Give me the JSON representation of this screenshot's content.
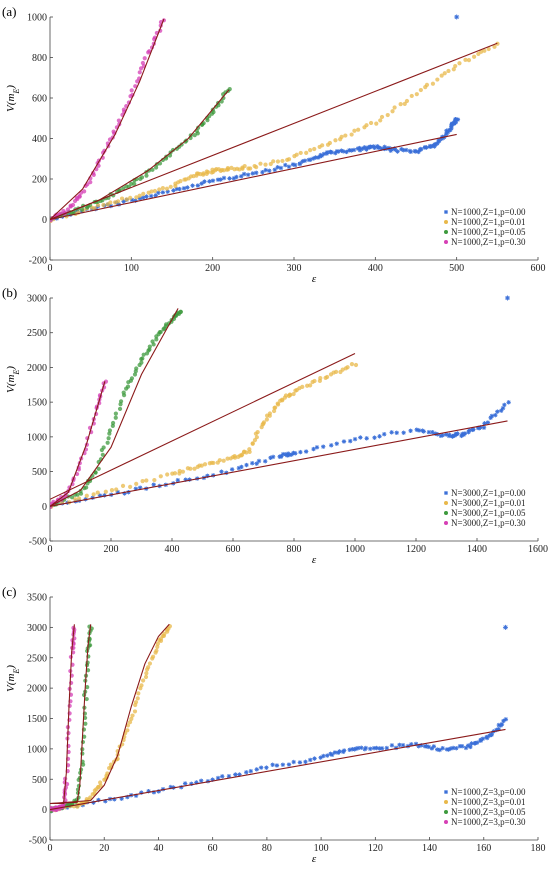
{
  "chart_data": [
    {
      "panel": "(a)",
      "type": "scatter",
      "xlabel": "ε",
      "ylabel": "V(m_E)",
      "xlim": [
        0,
        600
      ],
      "ylim": [
        -200,
        1000
      ],
      "xticks": [
        0,
        100,
        200,
        300,
        400,
        500,
        600
      ],
      "yticks": [
        -200,
        0,
        200,
        400,
        600,
        800,
        1000
      ],
      "legend_position": "bottom-right",
      "series": [
        {
          "name": "N=1000,Z=1,p=0.00",
          "color": "#3a6fd8",
          "marker": "asterisk",
          "points": [
            [
              0,
              0
            ],
            [
              50,
              50
            ],
            [
              100,
              95
            ],
            [
              150,
              140
            ],
            [
              200,
              190
            ],
            [
              250,
              230
            ],
            [
              300,
              270
            ],
            [
              330,
              310
            ],
            [
              350,
              335
            ],
            [
              380,
              345
            ],
            [
              400,
              360
            ],
            [
              420,
              345
            ],
            [
              450,
              338
            ],
            [
              470,
              360
            ],
            [
              485,
              410
            ],
            [
              495,
              470
            ],
            [
              500,
              500
            ]
          ],
          "outlier": [
            500,
            1000
          ]
        },
        {
          "name": "N=1000,Z=1,p=0.01",
          "color": "#e8b84a",
          "marker": "circle",
          "points": [
            [
              0,
              0
            ],
            [
              50,
              55
            ],
            [
              100,
              110
            ],
            [
              150,
              165
            ],
            [
              180,
              220
            ],
            [
              200,
              240
            ],
            [
              220,
              250
            ],
            [
              250,
              260
            ],
            [
              300,
              310
            ],
            [
              350,
              390
            ],
            [
              400,
              480
            ],
            [
              450,
              620
            ],
            [
              500,
              760
            ],
            [
              550,
              870
            ]
          ]
        },
        {
          "name": "N=1000,Z=1,p=0.05",
          "color": "#3d9a3d",
          "marker": "circle",
          "points": [
            [
              0,
              0
            ],
            [
              30,
              40
            ],
            [
              60,
              90
            ],
            [
              90,
              150
            ],
            [
              120,
              230
            ],
            [
              150,
              330
            ],
            [
              180,
              430
            ],
            [
              200,
              530
            ],
            [
              220,
              650
            ]
          ]
        },
        {
          "name": "N=1000,Z=1,p=0.30",
          "color": "#d63fb5",
          "marker": "circle",
          "points": [
            [
              0,
              0
            ],
            [
              20,
              40
            ],
            [
              40,
              130
            ],
            [
              60,
              280
            ],
            [
              80,
              440
            ],
            [
              100,
              620
            ],
            [
              120,
              820
            ],
            [
              140,
              990
            ]
          ]
        }
      ],
      "fits": [
        {
          "color": "#8b1a1a",
          "points": [
            [
              0,
              0
            ],
            [
              500,
              420
            ]
          ]
        },
        {
          "color": "#8b1a1a",
          "points": [
            [
              0,
              0
            ],
            [
              550,
              870
            ]
          ]
        },
        {
          "color": "#8b1a1a",
          "points": [
            [
              0,
              0
            ],
            [
              60,
              95
            ],
            [
              120,
              240
            ],
            [
              170,
              400
            ],
            [
              220,
              640
            ]
          ]
        },
        {
          "color": "#8b1a1a",
          "points": [
            [
              0,
              0
            ],
            [
              40,
              150
            ],
            [
              80,
              420
            ],
            [
              110,
              680
            ],
            [
              140,
              990
            ]
          ]
        }
      ]
    },
    {
      "panel": "(b)",
      "type": "scatter",
      "xlabel": "ε",
      "ylabel": "V(m_E)",
      "xlim": [
        0,
        1600
      ],
      "ylim": [
        -500,
        3000
      ],
      "xticks": [
        0,
        200,
        400,
        600,
        800,
        1000,
        1200,
        1400,
        1600
      ],
      "yticks": [
        -500,
        0,
        500,
        1000,
        1500,
        2000,
        2500,
        3000
      ],
      "legend_position": "bottom-right",
      "series": [
        {
          "name": "N=3000,Z=1,p=0.00",
          "color": "#3a6fd8",
          "marker": "asterisk",
          "points": [
            [
              0,
              0
            ],
            [
              200,
              170
            ],
            [
              400,
              340
            ],
            [
              600,
              520
            ],
            [
              750,
              730
            ],
            [
              800,
              760
            ],
            [
              1000,
              960
            ],
            [
              1200,
              1100
            ],
            [
              1300,
              1020
            ],
            [
              1350,
              1030
            ],
            [
              1420,
              1150
            ],
            [
              1500,
              1500
            ]
          ],
          "outlier": [
            1500,
            3000
          ]
        },
        {
          "name": "N=3000,Z=1,p=0.01",
          "color": "#e8b84a",
          "marker": "circle",
          "points": [
            [
              0,
              0
            ],
            [
              200,
              230
            ],
            [
              400,
              460
            ],
            [
              500,
              600
            ],
            [
              600,
              700
            ],
            [
              650,
              800
            ],
            [
              700,
              1200
            ],
            [
              750,
              1500
            ],
            [
              800,
              1650
            ],
            [
              900,
              1850
            ],
            [
              1000,
              2050
            ]
          ]
        },
        {
          "name": "N=3000,Z=1,p=0.05",
          "color": "#3d9a3d",
          "marker": "circle",
          "points": [
            [
              0,
              0
            ],
            [
              100,
              200
            ],
            [
              150,
              500
            ],
            [
              200,
              1100
            ],
            [
              250,
              1700
            ],
            [
              300,
              2100
            ],
            [
              350,
              2450
            ],
            [
              400,
              2700
            ],
            [
              430,
              2800
            ]
          ]
        },
        {
          "name": "N=3000,Z=1,p=0.30",
          "color": "#d63fb5",
          "marker": "circle",
          "points": [
            [
              0,
              0
            ],
            [
              50,
              150
            ],
            [
              100,
              600
            ],
            [
              150,
              1350
            ],
            [
              180,
              1800
            ]
          ]
        }
      ],
      "fits": [
        {
          "color": "#8b1a1a",
          "points": [
            [
              0,
              0
            ],
            [
              1500,
              1230
            ]
          ]
        },
        {
          "color": "#8b1a1a",
          "points": [
            [
              0,
              100
            ],
            [
              1000,
              2200
            ]
          ]
        },
        {
          "color": "#8b1a1a",
          "points": [
            [
              0,
              0
            ],
            [
              100,
              230
            ],
            [
              200,
              850
            ],
            [
              300,
              1900
            ],
            [
              420,
              2850
            ]
          ]
        },
        {
          "color": "#8b1a1a",
          "points": [
            [
              0,
              0
            ],
            [
              60,
              200
            ],
            [
              120,
              900
            ],
            [
              180,
              1800
            ]
          ]
        }
      ]
    },
    {
      "panel": "(c)",
      "type": "scatter",
      "xlabel": "ε",
      "ylabel": "V(m_E)",
      "xlim": [
        0,
        180
      ],
      "ylim": [
        -500,
        3500
      ],
      "xticks": [
        0,
        20,
        40,
        60,
        80,
        100,
        120,
        140,
        160,
        180
      ],
      "yticks": [
        -500,
        0,
        500,
        1000,
        1500,
        2000,
        2500,
        3000,
        3500
      ],
      "legend_position": "bottom-right",
      "series": [
        {
          "name": "N=1000,Z=3,p=0.00",
          "color": "#3a6fd8",
          "marker": "asterisk",
          "points": [
            [
              0,
              0
            ],
            [
              20,
              150
            ],
            [
              40,
              320
            ],
            [
              60,
              500
            ],
            [
              80,
              700
            ],
            [
              100,
              850
            ],
            [
              110,
              1000
            ],
            [
              120,
              1020
            ],
            [
              135,
              1060
            ],
            [
              145,
              1000
            ],
            [
              155,
              1050
            ],
            [
              162,
              1200
            ],
            [
              168,
              1480
            ]
          ],
          "outlier": [
            168,
            3000
          ]
        },
        {
          "name": "N=1000,Z=3,p=0.01",
          "color": "#e8b84a",
          "marker": "circle",
          "points": [
            [
              0,
              0
            ],
            [
              10,
              60
            ],
            [
              15,
              200
            ],
            [
              20,
              500
            ],
            [
              25,
              900
            ],
            [
              30,
              1500
            ],
            [
              35,
              2200
            ],
            [
              40,
              2750
            ],
            [
              44,
              3000
            ]
          ]
        },
        {
          "name": "N=1000,Z=3,p=0.05",
          "color": "#3d9a3d",
          "marker": "circle",
          "points": [
            [
              0,
              0
            ],
            [
              5,
              30
            ],
            [
              10,
              150
            ],
            [
              12,
              800
            ],
            [
              13,
              1800
            ],
            [
              14,
              2600
            ],
            [
              15,
              3000
            ]
          ]
        },
        {
          "name": "N=1000,Z=3,p=0.30",
          "color": "#d63fb5",
          "marker": "circle",
          "points": [
            [
              0,
              0
            ],
            [
              3,
              20
            ],
            [
              5,
              60
            ],
            [
              6,
              500
            ],
            [
              7,
              1600
            ],
            [
              8,
              2600
            ],
            [
              9,
              3000
            ]
          ]
        }
      ],
      "fits": [
        {
          "color": "#8b1a1a",
          "points": [
            [
              0,
              0
            ],
            [
              168,
              1320
            ]
          ]
        },
        {
          "color": "#8b1a1a",
          "points": [
            [
              0,
              100
            ],
            [
              15,
              150
            ],
            [
              20,
              400
            ],
            [
              25,
              900
            ],
            [
              30,
              1700
            ],
            [
              35,
              2400
            ],
            [
              40,
              2850
            ],
            [
              44,
              3050
            ]
          ]
        },
        {
          "color": "#8b1a1a",
          "points": [
            [
              0,
              100
            ],
            [
              10,
              120
            ],
            [
              11,
              400
            ],
            [
              12,
              1200
            ],
            [
              13,
              2000
            ],
            [
              14,
              2700
            ],
            [
              15,
              3050
            ]
          ]
        },
        {
          "color": "#8b1a1a",
          "points": [
            [
              0,
              100
            ],
            [
              5,
              100
            ],
            [
              6,
              600
            ],
            [
              7,
              1700
            ],
            [
              8,
              2600
            ],
            [
              9,
              3050
            ]
          ]
        }
      ]
    }
  ]
}
